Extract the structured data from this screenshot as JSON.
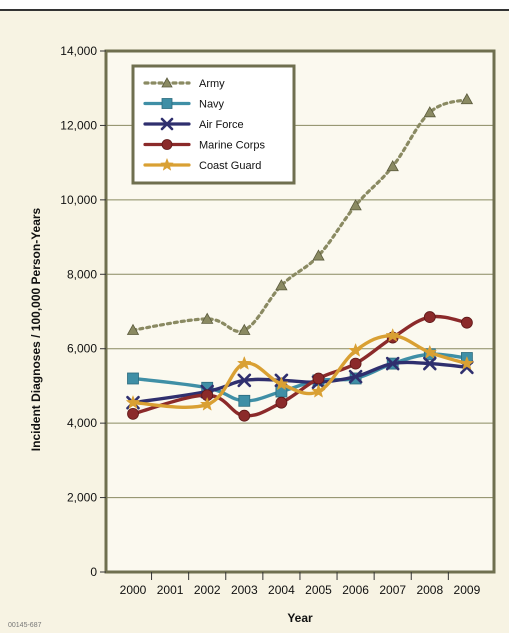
{
  "figure_id": "00145-687",
  "chart_data": {
    "type": "line",
    "title": "",
    "xlabel": "Year",
    "ylabel": "Incident Diagnoses / 100,000 Person-Years",
    "categories": [
      "2000",
      "2001",
      "2002",
      "2003",
      "2004",
      "2005",
      "2006",
      "2007",
      "2008",
      "2009"
    ],
    "ylim": [
      0,
      14000
    ],
    "yticks": [
      0,
      2000,
      4000,
      6000,
      8000,
      10000,
      12000,
      14000
    ],
    "ytick_labels": [
      "0",
      "2,000",
      "4,000",
      "6,000",
      "8,000",
      "10,000",
      "12,000",
      "14,000"
    ],
    "grid": "horizontal",
    "legend_position": "top-left",
    "series": [
      {
        "name": "Army",
        "color": "#8a8a62",
        "marker": "triangle",
        "style": "dotted",
        "values": [
          6500,
          null,
          6800,
          6500,
          7700,
          8500,
          9850,
          10900,
          12350,
          12700
        ]
      },
      {
        "name": "Navy",
        "color": "#3f8fa6",
        "marker": "square",
        "style": "solid",
        "values": [
          5200,
          null,
          4950,
          4600,
          4850,
          5150,
          5200,
          5600,
          5850,
          5750
        ]
      },
      {
        "name": "Air Force",
        "color": "#2f2f6e",
        "marker": "x",
        "style": "solid",
        "values": [
          4550,
          null,
          4850,
          5150,
          5150,
          5100,
          5250,
          5600,
          5600,
          5500
        ]
      },
      {
        "name": "Marine Corps",
        "color": "#8b2a2a",
        "marker": "circle",
        "style": "solid",
        "values": [
          4250,
          null,
          4750,
          4200,
          4550,
          5200,
          5600,
          6300,
          6850,
          6700
        ]
      },
      {
        "name": "Coast Guard",
        "color": "#d9a033",
        "marker": "star",
        "style": "solid",
        "values": [
          4550,
          null,
          4500,
          5600,
          5050,
          4850,
          5950,
          6350,
          5900,
          5600
        ]
      }
    ]
  }
}
